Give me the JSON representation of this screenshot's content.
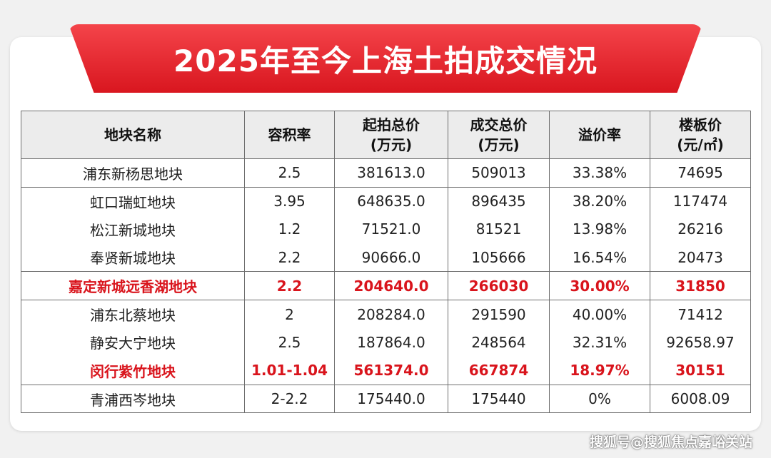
{
  "banner": {
    "title": "2025年至今上海土拍成交情况"
  },
  "table": {
    "headers": [
      {
        "line1": "地块名称",
        "line2": ""
      },
      {
        "line1": "容积率",
        "line2": ""
      },
      {
        "line1": "起拍总价",
        "line2": "(万元)"
      },
      {
        "line1": "成交总价",
        "line2": "(万元)"
      },
      {
        "line1": "溢价率",
        "line2": ""
      },
      {
        "line1": "楼板价",
        "line2": "(元/㎡)"
      }
    ],
    "rows": [
      {
        "name": "浦东新杨思地块",
        "far": "2.5",
        "start_price": "381613.0",
        "deal_price": "509013",
        "premium": "33.38%",
        "floor_price": "74695"
      },
      {
        "name": "虹口瑞虹地块",
        "far": "3.95",
        "start_price": "648635.0",
        "deal_price": "896435",
        "premium": "38.20%",
        "floor_price": "117474"
      },
      {
        "name": "松江新城地块",
        "far": "1.2",
        "start_price": "71521.0",
        "deal_price": "81521",
        "premium": "13.98%",
        "floor_price": "26216"
      },
      {
        "name": "奉贤新城地块",
        "far": "2.2",
        "start_price": "90666.0",
        "deal_price": "105666",
        "premium": "16.54%",
        "floor_price": "20473"
      },
      {
        "name": "嘉定新城远香湖地块",
        "far": "2.2",
        "start_price": "204640.0",
        "deal_price": "266030",
        "premium": "30.00%",
        "floor_price": "31850"
      },
      {
        "name": "浦东北蔡地块",
        "far": "2",
        "start_price": "208284.0",
        "deal_price": "291590",
        "premium": "40.00%",
        "floor_price": "71412"
      },
      {
        "name": "静安大宁地块",
        "far": "2.5",
        "start_price": "187864.0",
        "deal_price": "248564",
        "premium": "32.31%",
        "floor_price": "92658.97"
      },
      {
        "name": "闵行紫竹地块",
        "far": "1.01-1.04",
        "start_price": "561374.0",
        "deal_price": "667874",
        "premium": "18.97%",
        "floor_price": "30151"
      },
      {
        "name": "青浦西岑地块",
        "far": "2-2.2",
        "start_price": "175440.0",
        "deal_price": "175440",
        "premium": "0%",
        "floor_price": "6008.09"
      }
    ]
  },
  "highlight_color": "#d9141c",
  "watermark": "搜狐号@搜狐焦点嘉峪关站"
}
